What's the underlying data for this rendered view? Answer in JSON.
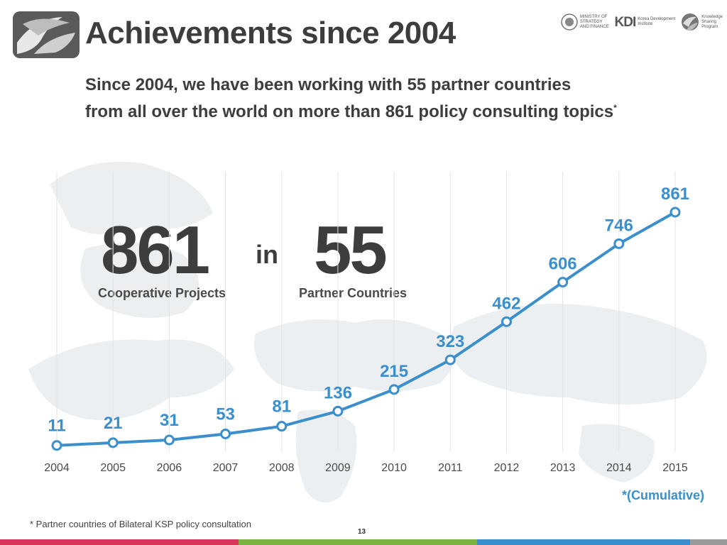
{
  "header": {
    "title": "Achievements since 2004",
    "subtitle_line1": "Since 2004, we have been working with 55 partner countries",
    "subtitle_line2": "from all over the world on more than 861 policy consulting topics",
    "subtitle_mark": "*"
  },
  "partners": {
    "ministry_line1": "MINISTRY OF",
    "ministry_line2": "STRATEGY",
    "ministry_line3": "AND FINANCE",
    "kdi_mark": "KDI",
    "kdi_name_line1": "Korea Development",
    "kdi_name_line2": "Institute",
    "ksp_line1": "Knowledge",
    "ksp_line2": "Sharing",
    "ksp_line3": "Program"
  },
  "stats": {
    "projects_value": "861",
    "projects_label": "Cooperative Projects",
    "connector": "in",
    "countries_value": "55",
    "countries_label": "Partner Countries"
  },
  "chart_data": {
    "type": "line",
    "categories": [
      "2004",
      "2005",
      "2006",
      "2007",
      "2008",
      "2009",
      "2010",
      "2011",
      "2012",
      "2013",
      "2014",
      "2015"
    ],
    "values": [
      11,
      21,
      31,
      53,
      81,
      136,
      215,
      323,
      462,
      606,
      746,
      861
    ],
    "ylim": [
      0,
      861
    ],
    "grid": "vertical",
    "line_color": "#3a8fcc",
    "label_color": "#3a8fcc"
  },
  "note_cumulative": "*(Cumulative)",
  "footnote": "* Partner countries of Bilateral KSP policy consultation",
  "page_number": "13",
  "colors": {
    "bar": [
      "#d9365c",
      "#7bb240",
      "#3a8fcc",
      "#9b9b9b"
    ]
  }
}
